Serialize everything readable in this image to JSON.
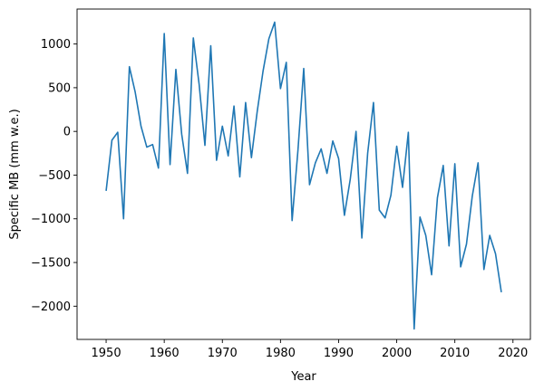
{
  "chart_data": {
    "type": "line",
    "xlabel": "Year",
    "ylabel": "Specific MB (mm w.e.)",
    "xlim": [
      1945,
      2023
    ],
    "ylim": [
      -2380,
      1400
    ],
    "xticks": [
      1950,
      1960,
      1970,
      1980,
      1990,
      2000,
      2010,
      2020
    ],
    "yticks": [
      1000,
      500,
      0,
      -500,
      -1000,
      -1500,
      -2000
    ],
    "ytick_labels": [
      "1000",
      "500",
      "0",
      "−500",
      "−1000",
      "−1500",
      "−2000"
    ],
    "grid": false,
    "series": [
      {
        "color": "#1f77b4",
        "x": [
          1950,
          1951,
          1952,
          1953,
          1954,
          1955,
          1956,
          1957,
          1958,
          1959,
          1960,
          1961,
          1962,
          1963,
          1964,
          1965,
          1966,
          1967,
          1968,
          1969,
          1970,
          1971,
          1972,
          1973,
          1974,
          1975,
          1976,
          1977,
          1978,
          1979,
          1980,
          1981,
          1982,
          1983,
          1984,
          1985,
          1986,
          1987,
          1988,
          1989,
          1990,
          1991,
          1992,
          1993,
          1994,
          1995,
          1996,
          1997,
          1998,
          1999,
          2000,
          2001,
          2002,
          2003,
          2004,
          2005,
          2006,
          2007,
          2008,
          2009,
          2010,
          2011,
          2012,
          2013,
          2014,
          2015,
          2016,
          2017,
          2018
        ],
        "values": [
          -680,
          -100,
          -10,
          -1000,
          740,
          450,
          60,
          -180,
          -150,
          -420,
          1120,
          -380,
          710,
          -30,
          -480,
          1070,
          540,
          -160,
          980,
          -330,
          60,
          -280,
          290,
          -520,
          330,
          -300,
          230,
          690,
          1060,
          1250,
          490,
          790,
          -1020,
          -220,
          720,
          -610,
          -360,
          -200,
          -480,
          -110,
          -310,
          -960,
          -550,
          0,
          -1220,
          -250,
          330,
          -900,
          -990,
          -730,
          -170,
          -640,
          -10,
          -2260,
          -980,
          -1190,
          -1640,
          -760,
          -390,
          -1310,
          -370,
          -1550,
          -1290,
          -740,
          -360,
          -1580,
          -1190,
          -1400,
          -1840
        ]
      }
    ]
  }
}
